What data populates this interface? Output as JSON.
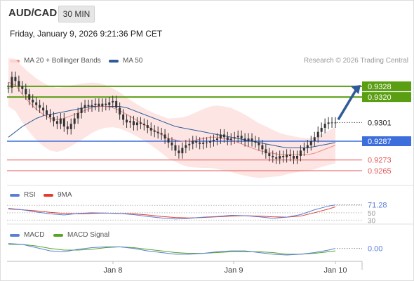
{
  "header": {
    "symbol": "AUD/CAD",
    "timeframe": "30 MIN",
    "datetime": "Friday, January 9, 2026 9:21:36 PM CET"
  },
  "copyright": "Research © 2026 Trading Central",
  "colors": {
    "ma20": "#f08a86",
    "ma50": "#2f5c98",
    "bollinger": "#fde0df",
    "resistance": "#5a9e12",
    "support_blue": "#3c6fdc",
    "support_red": "#e35a5a",
    "price": "#333333",
    "rsi": "#5b7ed6",
    "rsi_ma": "#e33b2e",
    "macd": "#5b7ed6",
    "macd_signal": "#56a52a",
    "arrow": "#2f5c98"
  },
  "chart_data": [
    {
      "type": "line",
      "panel": "price",
      "legend": [
        "MA 20 + Bollinger Bands",
        "MA 50"
      ],
      "x_ticks": [
        "Jan 8",
        "Jan 9",
        "Jan 10"
      ],
      "levels": [
        {
          "label": "0.9328",
          "value": 0.9328,
          "kind": "resistance"
        },
        {
          "label": "0.9320",
          "value": 0.932,
          "kind": "resistance"
        },
        {
          "label": "0.9301",
          "value": 0.9301,
          "kind": "last"
        },
        {
          "label": "0.9287",
          "value": 0.9287,
          "kind": "pivot"
        },
        {
          "label": "0.9273",
          "value": 0.9273,
          "kind": "support"
        },
        {
          "label": "0.9265",
          "value": 0.9265,
          "kind": "support"
        }
      ],
      "ylim": [
        0.9255,
        0.934
      ],
      "series": [
        {
          "name": "MA 20",
          "x": [
            0,
            10,
            20,
            30,
            40,
            50,
            60,
            70,
            80,
            90,
            100,
            110,
            120,
            130,
            140,
            150,
            160,
            170,
            180,
            190,
            200,
            210,
            220,
            230,
            240,
            250,
            260,
            270,
            280,
            290,
            300,
            310,
            320,
            330,
            340,
            350,
            360,
            370,
            380,
            390,
            400,
            410,
            420,
            430,
            440,
            450,
            460,
            470
          ],
          "values": [
            0.9331,
            0.9329,
            0.9322,
            0.9316,
            0.9311,
            0.9307,
            0.9304,
            0.9303,
            0.9304,
            0.9306,
            0.9308,
            0.931,
            0.9312,
            0.9313,
            0.9313,
            0.9312,
            0.931,
            0.9307,
            0.9304,
            0.9301,
            0.9298,
            0.9295,
            0.9292,
            0.9289,
            0.9288,
            0.9287,
            0.9287,
            0.9288,
            0.9289,
            0.929,
            0.929,
            0.9289,
            0.9288,
            0.9286,
            0.9284,
            0.9282,
            0.928,
            0.9279,
            0.9278,
            0.9277,
            0.9277,
            0.9277,
            0.9277,
            0.9277,
            0.9278,
            0.928,
            0.9282,
            0.9284
          ]
        },
        {
          "name": "MA 50",
          "x": [
            0,
            10,
            20,
            30,
            40,
            50,
            60,
            70,
            80,
            90,
            100,
            110,
            120,
            130,
            140,
            150,
            160,
            170,
            180,
            190,
            200,
            210,
            220,
            230,
            240,
            250,
            260,
            270,
            280,
            290,
            300,
            310,
            320,
            330,
            340,
            350,
            360,
            370,
            380,
            390,
            400,
            410,
            420,
            430,
            440,
            450,
            460,
            470
          ],
          "values": [
            0.929,
            0.9294,
            0.9298,
            0.9301,
            0.9304,
            0.9306,
            0.9307,
            0.9308,
            0.9309,
            0.931,
            0.9311,
            0.9312,
            0.9313,
            0.9313,
            0.9313,
            0.9313,
            0.9313,
            0.9312,
            0.931,
            0.9308,
            0.9306,
            0.9304,
            0.9302,
            0.93,
            0.9298,
            0.9297,
            0.9296,
            0.9295,
            0.9294,
            0.9293,
            0.9292,
            0.9291,
            0.929,
            0.9289,
            0.9288,
            0.9287,
            0.9286,
            0.9285,
            0.9284,
            0.9283,
            0.9282,
            0.9282,
            0.9282,
            0.9282,
            0.9283,
            0.9284,
            0.9285,
            0.9286
          ]
        },
        {
          "name": "Price",
          "x": [
            0,
            5,
            10,
            15,
            20,
            25,
            30,
            35,
            40,
            45,
            50,
            55,
            60,
            65,
            70,
            75,
            80,
            85,
            90,
            95,
            100,
            105,
            110,
            115,
            120,
            125,
            130,
            135,
            140,
            145,
            150,
            155,
            160,
            165,
            170,
            175,
            180,
            185,
            190,
            195,
            200,
            205,
            210,
            215,
            220,
            225,
            230,
            235,
            240,
            245,
            250,
            255,
            260,
            265,
            270,
            275,
            280,
            285,
            290,
            295,
            300,
            305,
            310,
            315,
            320,
            325,
            330,
            335,
            340,
            345,
            350,
            355,
            360,
            365,
            370,
            375,
            380,
            385,
            390,
            395,
            400,
            405,
            410,
            415,
            420,
            425,
            430,
            435,
            440,
            445,
            450,
            455,
            460,
            465,
            470
          ],
          "values": [
            0.9327,
            0.9335,
            0.9332,
            0.9328,
            0.9326,
            0.9322,
            0.9318,
            0.9316,
            0.9314,
            0.9312,
            0.931,
            0.9307,
            0.9305,
            0.9302,
            0.93,
            0.9304,
            0.9298,
            0.9296,
            0.93,
            0.9304,
            0.9308,
            0.9312,
            0.9314,
            0.9313,
            0.9314,
            0.9315,
            0.9313,
            0.9315,
            0.9314,
            0.9316,
            0.9317,
            0.9312,
            0.9307,
            0.9303,
            0.9301,
            0.9302,
            0.9299,
            0.9301,
            0.93,
            0.9299,
            0.9297,
            0.9295,
            0.9294,
            0.9293,
            0.9292,
            0.9289,
            0.9286,
            0.9284,
            0.928,
            0.9278,
            0.9282,
            0.9284,
            0.9285,
            0.9287,
            0.9286,
            0.9285,
            0.9286,
            0.9286,
            0.9287,
            0.9288,
            0.9289,
            0.9292,
            0.929,
            0.9288,
            0.9289,
            0.929,
            0.9291,
            0.9289,
            0.9287,
            0.9289,
            0.9287,
            0.9286,
            0.9284,
            0.9281,
            0.9278,
            0.9276,
            0.9275,
            0.9274,
            0.9276,
            0.9275,
            0.9277,
            0.9276,
            0.9274,
            0.9276,
            0.928,
            0.9282,
            0.9284,
            0.9287,
            0.929,
            0.9294,
            0.9297,
            0.93,
            0.9301,
            0.9301,
            0.9301
          ]
        }
      ]
    },
    {
      "type": "line",
      "panel": "rsi",
      "legend": [
        "RSI",
        "9MA"
      ],
      "value_label": "71.28",
      "levels": [
        70,
        50,
        30
      ],
      "ylim": [
        25,
        80
      ],
      "series": [
        {
          "name": "RSI",
          "x": [
            0,
            20,
            40,
            60,
            80,
            100,
            120,
            140,
            160,
            180,
            200,
            220,
            240,
            260,
            280,
            300,
            320,
            340,
            360,
            380,
            400,
            420,
            440,
            460,
            470
          ],
          "values": [
            62,
            58,
            52,
            47,
            44,
            48,
            50,
            49,
            48,
            45,
            40,
            36,
            33,
            35,
            38,
            40,
            43,
            42,
            39,
            35,
            38,
            45,
            58,
            68,
            71.28
          ]
        },
        {
          "name": "9MA",
          "x": [
            0,
            20,
            40,
            60,
            80,
            100,
            120,
            140,
            160,
            180,
            200,
            220,
            240,
            260,
            280,
            300,
            320,
            340,
            360,
            380,
            400,
            420,
            440,
            460,
            470
          ],
          "values": [
            60,
            58,
            55,
            51,
            48,
            47,
            48,
            49,
            48,
            47,
            44,
            40,
            37,
            36,
            37,
            39,
            41,
            42,
            41,
            39,
            38,
            41,
            50,
            60,
            66
          ]
        }
      ]
    },
    {
      "type": "line",
      "panel": "macd",
      "legend": [
        "MACD",
        "MACD Signal"
      ],
      "value_label": "0.00",
      "ylim": [
        -0.0012,
        0.0012
      ],
      "series": [
        {
          "name": "MACD",
          "x": [
            0,
            20,
            40,
            60,
            80,
            100,
            120,
            140,
            160,
            180,
            200,
            220,
            240,
            260,
            280,
            300,
            320,
            340,
            360,
            380,
            400,
            420,
            440,
            460,
            470
          ],
          "values": [
            0.0008,
            0.0007,
            0.0003,
            -0.0001,
            -0.0002,
            0.0001,
            0.0003,
            0.0004,
            0.0004,
            0.0002,
            -0.0001,
            -0.0003,
            -0.0005,
            -0.0005,
            -0.0004,
            -0.0002,
            -0.0001,
            -0.0001,
            -0.0003,
            -0.0005,
            -0.0006,
            -0.0005,
            -0.0003,
            0.0,
            0.0002
          ]
        },
        {
          "name": "MACD Signal",
          "x": [
            0,
            20,
            40,
            60,
            80,
            100,
            120,
            140,
            160,
            180,
            200,
            220,
            240,
            260,
            280,
            300,
            320,
            340,
            360,
            380,
            400,
            420,
            440,
            460,
            470
          ],
          "values": [
            0.0007,
            0.0007,
            0.0005,
            0.0002,
            0.0,
            0.0,
            0.0001,
            0.0003,
            0.0004,
            0.0003,
            0.0001,
            -0.0001,
            -0.0003,
            -0.0004,
            -0.0004,
            -0.0003,
            -0.0002,
            -0.0002,
            -0.0002,
            -0.0003,
            -0.0005,
            -0.0005,
            -0.0004,
            -0.0002,
            -0.0001
          ]
        }
      ]
    }
  ]
}
